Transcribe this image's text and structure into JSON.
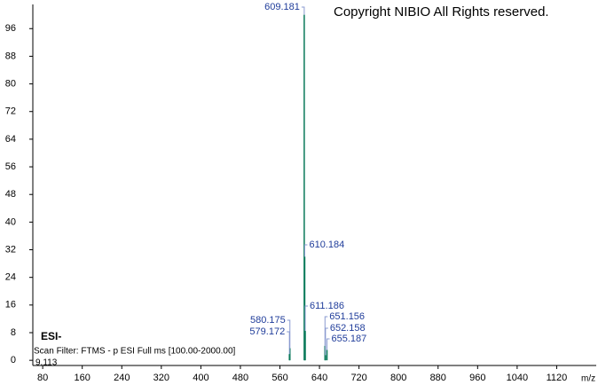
{
  "chart_data": {
    "type": "stem",
    "annotations": {
      "copyright": "Copyright NIBIO All Rights reserved.",
      "ionization": "ESI-",
      "scan_filter": "Scan Filter: FTMS - p ESI Full ms [100.00-2000.00]",
      "retention_time": "9.113"
    },
    "xlabel": "m/z",
    "x": [
      609.181,
      610.184,
      611.186,
      580.175,
      579.172,
      651.156,
      652.158,
      655.187
    ],
    "values": [
      100,
      30,
      8.5,
      3.5,
      1.8,
      4.2,
      1.5,
      3.0
    ],
    "color": "#0a7a5a",
    "label_color": "#1f3c9a",
    "xlim": [
      60,
      1200
    ],
    "xticks": [
      80,
      160,
      240,
      320,
      400,
      480,
      560,
      640,
      720,
      800,
      880,
      960,
      1040,
      1120
    ],
    "ylim": [
      -1.5,
      103
    ],
    "yticks": [
      0,
      8,
      16,
      24,
      32,
      40,
      48,
      56,
      64,
      72,
      80,
      88,
      96
    ]
  }
}
